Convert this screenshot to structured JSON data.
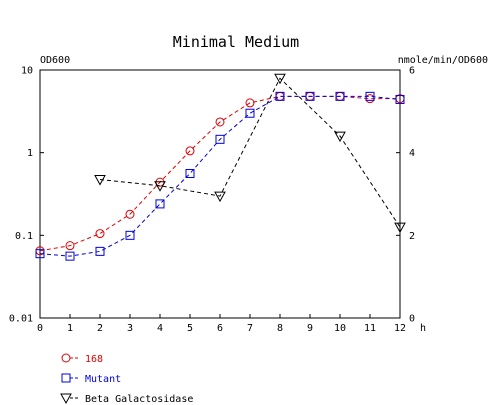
{
  "chart_data": {
    "type": "line",
    "title": "Minimal Medium",
    "xlabel": "h",
    "ylabel_left": "OD600",
    "ylabel_right": "nmole/min/OD600",
    "x_ticks": [
      0,
      1,
      2,
      3,
      4,
      5,
      6,
      7,
      8,
      9,
      10,
      11,
      12
    ],
    "xlim": [
      0,
      12
    ],
    "yleft_scale": "log",
    "yleft_ticks": [
      "10",
      "1",
      "0.1",
      "0.01"
    ],
    "yleft_lim": [
      0.01,
      10
    ],
    "yright_ticks": [
      "6",
      "4",
      "2",
      "0"
    ],
    "yright_lim": [
      0,
      6
    ],
    "grid": false,
    "legend_position": "bottom-left",
    "series": [
      {
        "name": "168",
        "axis": "left",
        "marker": "circle",
        "color": "#e00000",
        "x": [
          0,
          1,
          2,
          3,
          4,
          5,
          6,
          7,
          8,
          9,
          10,
          11,
          12
        ],
        "y": [
          0.065,
          0.075,
          0.105,
          0.18,
          0.44,
          1.05,
          2.35,
          4.0,
          4.8,
          4.8,
          4.8,
          4.5,
          4.5
        ]
      },
      {
        "name": "Mutant",
        "axis": "left",
        "marker": "square",
        "color": "#0000e0",
        "x": [
          0,
          1,
          2,
          3,
          4,
          5,
          6,
          7,
          8,
          9,
          10,
          11,
          12
        ],
        "y": [
          0.06,
          0.056,
          0.064,
          0.1,
          0.24,
          0.56,
          1.45,
          3.0,
          4.8,
          4.8,
          4.8,
          4.8,
          4.4
        ]
      },
      {
        "name": "Beta Galactosidase",
        "axis": "right",
        "marker": "triangle-down",
        "color": "#000000",
        "x": [
          2,
          4,
          6,
          8,
          10,
          12
        ],
        "y": [
          3.35,
          3.2,
          2.95,
          5.8,
          4.4,
          2.2
        ]
      }
    ]
  }
}
